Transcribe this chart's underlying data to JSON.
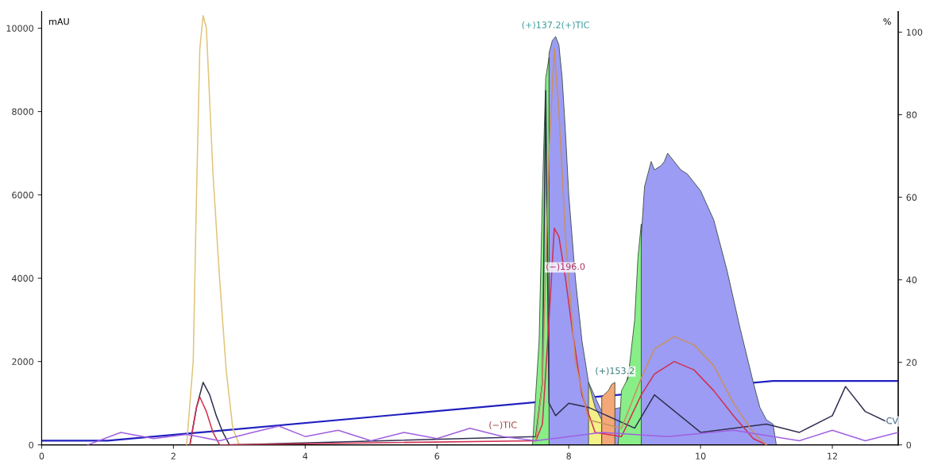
{
  "chart_data": {
    "type": "line",
    "ylabel": "mAU",
    "y2label": "%",
    "xlim": [
      0,
      13
    ],
    "xticks": [
      0,
      2,
      4,
      6,
      8,
      10,
      12
    ],
    "ylim": [
      0,
      10400
    ],
    "yticks": [
      0,
      2000,
      4000,
      6000,
      8000,
      10000
    ],
    "y2lim": [
      0,
      105
    ],
    "y2ticks": [
      0,
      20,
      40,
      60,
      80,
      100
    ],
    "grid": false,
    "legend": false,
    "series": [
      {
        "type": "area",
        "color": "#9c9cf4",
        "x": [
          7.7,
          7.7,
          7.75,
          7.8,
          7.85,
          7.9,
          7.95,
          8.0,
          8.1,
          8.2,
          8.3,
          8.5,
          8.8,
          9.0,
          9.1,
          9.15,
          9.25,
          9.3,
          9.4,
          9.45,
          9.5,
          9.6,
          9.7,
          9.8,
          9.9,
          10.0,
          10.2,
          10.4,
          10.6,
          10.8,
          10.9,
          11.0,
          11.1,
          11.15
        ],
        "values": [
          0,
          9400,
          9700,
          9800,
          9600,
          8800,
          7500,
          6000,
          4000,
          2500,
          1500,
          800,
          900,
          2500,
          5000,
          6200,
          6800,
          6600,
          6700,
          6800,
          7000,
          6800,
          6600,
          6500,
          6300,
          6100,
          5400,
          4200,
          2800,
          1500,
          900,
          600,
          500,
          0
        ]
      },
      {
        "type": "area",
        "color": "#88ee88",
        "x": [
          7.45,
          7.55,
          7.6,
          7.65,
          7.7,
          7.7
        ],
        "values": [
          0,
          2500,
          6000,
          8800,
          9300,
          0
        ]
      },
      {
        "type": "area",
        "color": "#88ee88",
        "x": [
          8.75,
          8.8,
          8.9,
          9.0,
          9.05,
          9.1,
          9.1
        ],
        "values": [
          0,
          1300,
          1600,
          3000,
          4500,
          5300,
          0
        ]
      },
      {
        "type": "area",
        "color": "#f4f088",
        "x": [
          8.3,
          8.3,
          8.4,
          8.5,
          8.5
        ],
        "values": [
          0,
          1500,
          900,
          600,
          0
        ]
      },
      {
        "type": "area",
        "color": "#f4a878",
        "x": [
          8.5,
          8.5,
          8.6,
          8.65,
          8.7,
          8.7
        ],
        "values": [
          0,
          1150,
          1300,
          1450,
          1500,
          0
        ]
      },
      {
        "color": "#e0c478",
        "x": [
          2.2,
          2.3,
          2.35,
          2.4,
          2.45,
          2.5,
          2.6,
          2.7,
          2.8,
          2.9,
          3.0
        ],
        "values": [
          0,
          2000,
          6000,
          9500,
          10300,
          10000,
          6500,
          4000,
          1800,
          400,
          0
        ]
      },
      {
        "color": "#303050",
        "x": [
          2.25,
          2.35,
          2.45,
          2.55,
          2.65,
          2.75,
          2.85,
          7.5,
          7.6,
          7.65,
          7.7,
          7.8,
          8.0,
          8.3,
          9.0,
          9.3,
          10.0,
          11.0,
          11.5,
          12.0,
          12.2,
          12.5,
          12.9
        ],
        "values": [
          0,
          900,
          1500,
          1200,
          700,
          300,
          0,
          200,
          1500,
          8500,
          1000,
          700,
          1000,
          900,
          400,
          1200,
          300,
          500,
          300,
          700,
          1400,
          800,
          500
        ]
      },
      {
        "color": "#d03050",
        "x": [
          2.25,
          2.35,
          2.4,
          2.5,
          2.6,
          2.7,
          7.5,
          7.6,
          7.7,
          7.78,
          7.85,
          7.95,
          8.05,
          8.2,
          8.4,
          8.8,
          9.1,
          9.3,
          9.6,
          9.9,
          10.2,
          10.5,
          10.8,
          11.0
        ],
        "values": [
          0,
          900,
          1150,
          800,
          300,
          0,
          100,
          500,
          3000,
          5200,
          5000,
          4000,
          2800,
          1200,
          300,
          200,
          1200,
          1700,
          2000,
          1800,
          1300,
          700,
          150,
          0
        ]
      },
      {
        "color": "#c89060",
        "x": [
          7.5,
          7.6,
          7.7,
          7.78,
          7.85,
          7.95,
          8.1,
          8.3,
          8.8,
          9.1,
          9.3,
          9.6,
          9.9,
          10.2,
          10.5,
          10.8,
          11.0
        ],
        "values": [
          100,
          1500,
          7000,
          9500,
          8000,
          5000,
          2000,
          600,
          400,
          1600,
          2300,
          2600,
          2400,
          1900,
          1000,
          300,
          0
        ]
      },
      {
        "color": "#a060e0",
        "x": [
          0.7,
          1.2,
          1.7,
          2.2,
          2.7,
          3.2,
          3.6,
          4.0,
          4.5,
          5.0,
          5.5,
          6.0,
          6.5,
          7.0,
          7.5,
          8.5,
          9.5,
          10.5,
          11.5,
          12.0,
          12.5,
          13.0
        ],
        "values": [
          0,
          300,
          150,
          250,
          100,
          300,
          450,
          200,
          350,
          100,
          300,
          150,
          400,
          200,
          100,
          300,
          200,
          350,
          100,
          350,
          100,
          300
        ]
      },
      {
        "axis": "y2",
        "color": "#2020c0",
        "x": [
          0,
          1,
          11.1,
          13
        ],
        "values": [
          1,
          1,
          15.5,
          15.5
        ]
      }
    ],
    "annotations": [
      {
        "text": "(+)137.2(+)TIC",
        "x": 7.8,
        "y": 9800
      },
      {
        "text": "(−)196.0",
        "x": 7.95,
        "y": 4000
      },
      {
        "text": "(+)153.2",
        "x": 8.7,
        "y": 1500
      },
      {
        "text": "(−)TIC",
        "x": 7.0,
        "y": 200
      },
      {
        "text": "CV",
        "x": 13.0,
        "y": 300
      }
    ]
  }
}
